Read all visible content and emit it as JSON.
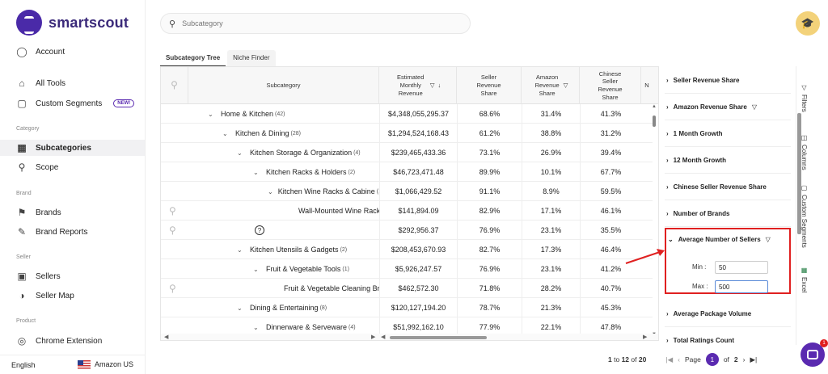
{
  "app": {
    "name": "smartscout"
  },
  "sidebar": {
    "account": "Account",
    "all_tools": "All Tools",
    "custom_segments": "Custom Segments",
    "new_badge": "NEW!",
    "section_category": "Category",
    "subcategories": "Subcategories",
    "scope": "Scope",
    "section_brand": "Brand",
    "brands": "Brands",
    "brand_reports": "Brand Reports",
    "section_seller": "Seller",
    "sellers": "Sellers",
    "seller_map": "Seller Map",
    "section_product": "Product",
    "chrome_extension": "Chrome Extension",
    "language": "English",
    "marketplace": "Amazon US"
  },
  "search": {
    "placeholder": "Subcategory"
  },
  "tabs": [
    {
      "label": "Subcategory Tree"
    },
    {
      "label": "Niche Finder"
    }
  ],
  "grid": {
    "headers": {
      "subcategory": "Subcategory",
      "revenue": "Estimated Monthly Revenue",
      "seller_share": "Seller Revenue Share",
      "amazon_share": "Amazon Revenue Share",
      "chinese_share": "Chinese Seller Revenue Share",
      "next": "N"
    },
    "rows": [
      {
        "name": "Home & Kitchen",
        "count": "(42)",
        "revenue": "$4,348,055,295.37",
        "seller": "68.6%",
        "amazon": "31.4%",
        "chinese": "41.3%"
      },
      {
        "name": "Kitchen & Dining",
        "count": "(28)",
        "revenue": "$1,294,524,168.43",
        "seller": "61.2%",
        "amazon": "38.8%",
        "chinese": "31.2%"
      },
      {
        "name": "Kitchen Storage & Organization",
        "count": "(4)",
        "revenue": "$239,465,433.36",
        "seller": "73.1%",
        "amazon": "26.9%",
        "chinese": "39.4%"
      },
      {
        "name": "Kitchen Racks & Holders",
        "count": "(2)",
        "revenue": "$46,723,471.48",
        "seller": "89.9%",
        "amazon": "10.1%",
        "chinese": "67.7%"
      },
      {
        "name": "Kitchen Wine Racks & Cabine",
        "count": "(1)",
        "revenue": "$1,066,429.52",
        "seller": "91.1%",
        "amazon": "8.9%",
        "chinese": "59.5%"
      },
      {
        "name": "Wall-Mounted Wine Racks",
        "count": "",
        "revenue": "$141,894.09",
        "seller": "82.9%",
        "amazon": "17.1%",
        "chinese": "46.1%"
      },
      {
        "name": "",
        "count": "",
        "revenue": "$292,956.37",
        "seller": "76.9%",
        "amazon": "23.1%",
        "chinese": "35.5%"
      },
      {
        "name": "Kitchen Utensils & Gadgets",
        "count": "(2)",
        "revenue": "$208,453,670.93",
        "seller": "82.7%",
        "amazon": "17.3%",
        "chinese": "46.4%"
      },
      {
        "name": "Fruit & Vegetable Tools",
        "count": "(1)",
        "revenue": "$5,926,247.57",
        "seller": "76.9%",
        "amazon": "23.1%",
        "chinese": "41.2%"
      },
      {
        "name": "Fruit & Vegetable Cleaning Brus",
        "count": "",
        "revenue": "$462,572.30",
        "seller": "71.8%",
        "amazon": "28.2%",
        "chinese": "40.7%"
      },
      {
        "name": "Dining & Entertaining",
        "count": "(8)",
        "revenue": "$120,127,194.20",
        "seller": "78.7%",
        "amazon": "21.3%",
        "chinese": "45.3%"
      },
      {
        "name": "Dinnerware & Serveware",
        "count": "(4)",
        "revenue": "$51,992,162.10",
        "seller": "77.9%",
        "amazon": "22.1%",
        "chinese": "47.8%"
      }
    ]
  },
  "pagination": {
    "range_start": "1",
    "to": "to",
    "range_end": "12",
    "of": "of",
    "total": "20",
    "page_label": "Page",
    "current": "1",
    "of2": "of",
    "pages": "2"
  },
  "filters": {
    "items": [
      "Seller Revenue Share",
      "Amazon Revenue Share",
      "1 Month Growth",
      "12 Month Growth",
      "Chinese Seller Revenue Share",
      "Number of Brands"
    ],
    "expanded": {
      "title": "Average Number of Sellers",
      "min_label": "Min :",
      "min_value": "50",
      "max_label": "Max :",
      "max_value": "500"
    },
    "after": [
      "Average Package Volume",
      "Total Ratings Count"
    ]
  },
  "rail": {
    "filters": "Filters",
    "columns": "Columns",
    "custom_segments": "Custom Segments",
    "excel": "Excel"
  },
  "chat_badge": "1",
  "colors": {
    "brand": "#4a2aa8",
    "highlight": "#e02020"
  }
}
